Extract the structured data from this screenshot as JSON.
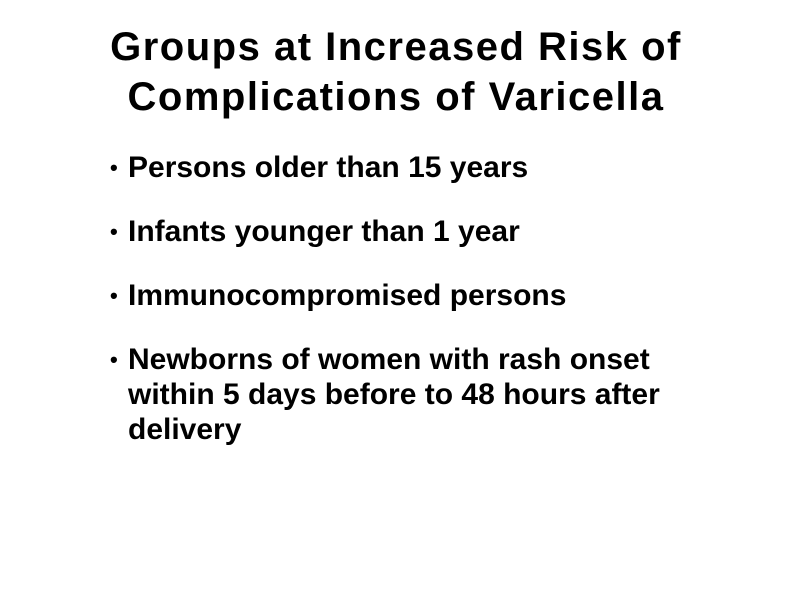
{
  "slide": {
    "title_lines": [
      "Groups at Increased Risk of",
      "Complications of Varicella"
    ],
    "bullets": [
      "Persons older than 15 years",
      "Infants younger than 1 year",
      "Immunocompromised persons",
      "Newborns of women with rash onset within 5 days before to 48 hours after delivery"
    ],
    "bullet_glyph": "•"
  }
}
